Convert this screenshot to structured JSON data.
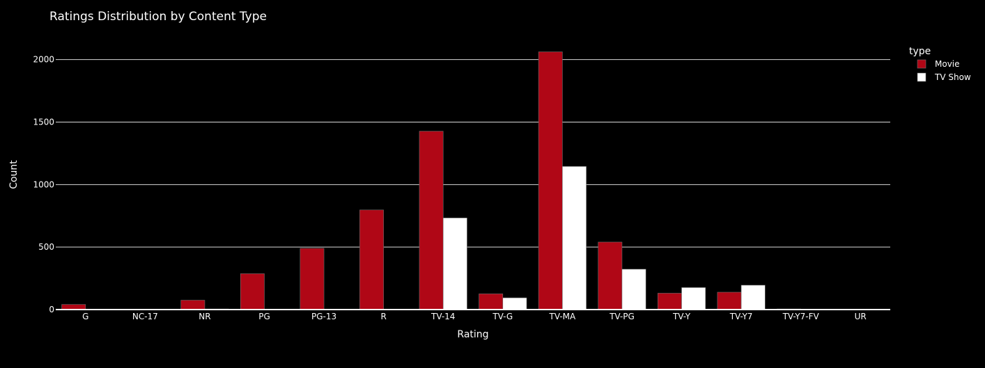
{
  "chart_data": {
    "type": "bar",
    "title": "Ratings Distribution by Content Type",
    "xlabel": "Rating",
    "ylabel": "Count",
    "categories": [
      "G",
      "NC-17",
      "NR",
      "PG",
      "PG-13",
      "R",
      "TV-14",
      "TV-G",
      "TV-MA",
      "TV-PG",
      "TV-Y",
      "TV-Y7",
      "TV-Y7-FV",
      "UR"
    ],
    "series": [
      {
        "name": "Movie",
        "color": "#b00716",
        "values": [
          41,
          3,
          75,
          287,
          490,
          797,
          1427,
          126,
          2062,
          540,
          131,
          139,
          5,
          3
        ]
      },
      {
        "name": "TV Show",
        "color": "#ffffff",
        "values": [
          0,
          0,
          5,
          0,
          0,
          2,
          733,
          94,
          1145,
          323,
          176,
          195,
          1,
          0
        ]
      }
    ],
    "yticks": [
      0,
      500,
      1000,
      1500,
      2000
    ],
    "ylim": [
      0,
      2170.5
    ],
    "grid": true,
    "legend": {
      "title": "type",
      "position": "top-right"
    },
    "colors": {
      "background": "#000000",
      "text": "#ffffff",
      "grid": "#ffffff"
    }
  }
}
